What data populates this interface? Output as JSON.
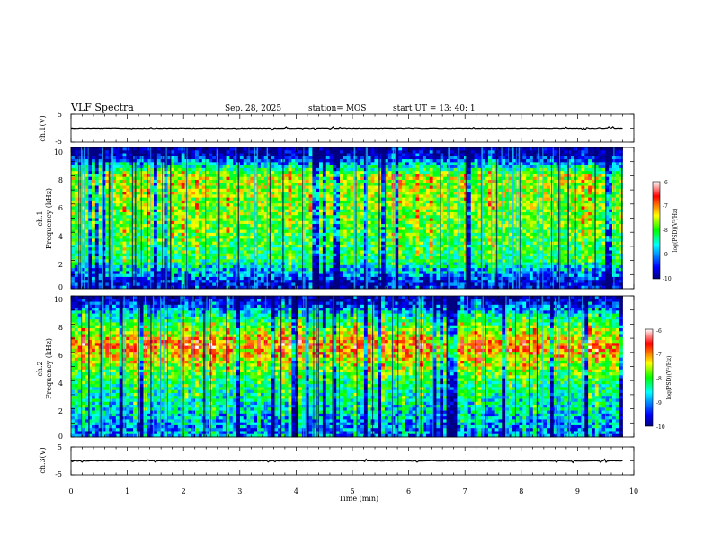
{
  "header": {
    "title": "VLF Spectra",
    "date": "Sep. 28, 2025",
    "station": "station= MOS",
    "start": "start  UT  =   13: 40: 1"
  },
  "chart_data": [
    {
      "type": "line",
      "panel": "ch1_waveform",
      "ylabel": "ch.1(V)",
      "ylim": [
        -5,
        5
      ],
      "y_ticks": [
        "5",
        "-5"
      ],
      "series": [
        {
          "x": [
            0,
            9.8
          ],
          "y": [
            0,
            0
          ]
        }
      ]
    },
    {
      "type": "heatmap",
      "panel": "ch1_spectrogram",
      "ylabel_line1": "ch.1",
      "ylabel_line2": "Frequency (kHz)",
      "ylim": [
        0,
        10
      ],
      "y_ticks": [
        "0",
        "2",
        "4",
        "6",
        "8",
        "10"
      ],
      "x_data_range": [
        0,
        9.8
      ],
      "colorbar": {
        "label": "log(PSD)(V²/Hz)",
        "range": [
          -10,
          -6
        ],
        "ticks": [
          "-6",
          "-7",
          "-8",
          "-9",
          "-10"
        ]
      },
      "band_profile": [
        {
          "freq_khz": 0.5,
          "level": -9.5
        },
        {
          "freq_khz": 2.0,
          "level": -8.2
        },
        {
          "freq_khz": 5.0,
          "level": -7.8
        },
        {
          "freq_khz": 8.0,
          "level": -7.6
        },
        {
          "freq_khz": 9.5,
          "level": -9.8
        }
      ]
    },
    {
      "type": "heatmap",
      "panel": "ch2_spectrogram",
      "ylabel_line1": "ch.2",
      "ylabel_line2": "Frequency (kHz)",
      "ylim": [
        0,
        10
      ],
      "y_ticks": [
        "0",
        "2",
        "4",
        "6",
        "8",
        "10"
      ],
      "x_data_range": [
        0,
        9.8
      ],
      "colorbar": {
        "label": "log(PSD)(V²/Hz)",
        "range": [
          -10,
          -6
        ],
        "ticks": [
          "-6",
          "-7",
          "-8",
          "-9",
          "-10"
        ]
      },
      "band_profile": [
        {
          "freq_khz": 0.5,
          "level": -9.0
        },
        {
          "freq_khz": 2.0,
          "level": -8.6
        },
        {
          "freq_khz": 4.0,
          "level": -8.2
        },
        {
          "freq_khz": 6.5,
          "level": -7.0
        },
        {
          "freq_khz": 8.5,
          "level": -8.4
        },
        {
          "freq_khz": 9.8,
          "level": -9.8
        }
      ]
    },
    {
      "type": "line",
      "panel": "ch3_waveform",
      "ylabel": "ch.3(V)",
      "ylim": [
        -5,
        5
      ],
      "y_ticks": [
        "5",
        "-5"
      ],
      "series": [
        {
          "x": [
            0,
            9.8
          ],
          "y": [
            0,
            0
          ]
        }
      ]
    }
  ],
  "x_axis": {
    "xlabel": "Time  (min)",
    "xlim": [
      0,
      10
    ],
    "ticks": [
      "0",
      "1",
      "2",
      "3",
      "4",
      "5",
      "6",
      "7",
      "8",
      "9",
      "10"
    ]
  },
  "colors": {
    "colormap": [
      "#000080",
      "#0000ff",
      "#00ffff",
      "#00ff00",
      "#ffff00",
      "#ff0000",
      "#ffffff"
    ]
  }
}
